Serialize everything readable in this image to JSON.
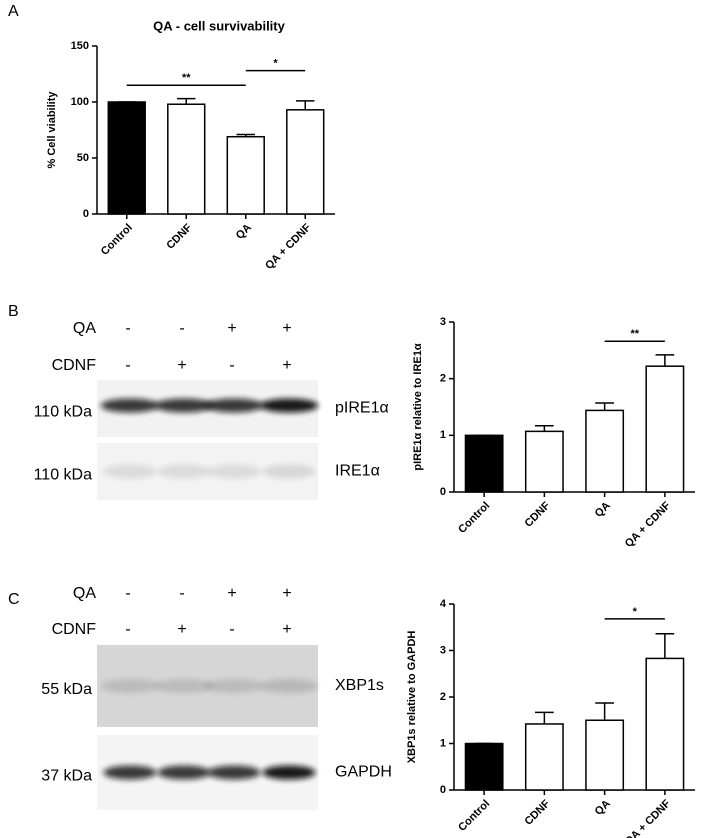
{
  "panel_labels": [
    "A",
    "B",
    "C"
  ],
  "chart_data": [
    {
      "type": "bar",
      "title": "QA - cell survivability",
      "y_label": "% Cell viability",
      "categories": [
        "Control",
        "CDNF",
        "QA",
        "QA + CDNF"
      ],
      "values": [
        100,
        98,
        69,
        93
      ],
      "errors": [
        0,
        5,
        2,
        8
      ],
      "colors": [
        "#000000",
        "#ffffff",
        "#ffffff",
        "#ffffff"
      ],
      "ylim": [
        0,
        150
      ],
      "yticks": [
        0,
        50,
        100,
        150
      ],
      "annotations": [
        {
          "text": "**",
          "between": [
            "Control",
            "QA"
          ]
        },
        {
          "text": "*",
          "between": [
            "QA",
            "QA + CDNF"
          ]
        }
      ]
    },
    {
      "type": "bar",
      "y_label": "pIRE1α relative to IRE1α",
      "categories": [
        "Control",
        "CDNF",
        "QA",
        "QA + CDNF"
      ],
      "values": [
        1,
        1.07,
        1.44,
        2.22
      ],
      "errors": [
        0,
        0.1,
        0.13,
        0.2
      ],
      "colors": [
        "#000000",
        "#ffffff",
        "#ffffff",
        "#ffffff"
      ],
      "ylim": [
        0,
        3
      ],
      "yticks": [
        0,
        1,
        2,
        3
      ],
      "annotations": [
        {
          "text": "**",
          "between": [
            "QA",
            "QA + CDNF"
          ]
        }
      ]
    },
    {
      "type": "bar",
      "y_label": "XBP1s relative to GAPDH",
      "categories": [
        "Control",
        "CDNF",
        "QA",
        "QA + CDNF"
      ],
      "values": [
        1,
        1.42,
        1.5,
        2.83
      ],
      "errors": [
        0,
        0.25,
        0.37,
        0.53
      ],
      "colors": [
        "#000000",
        "#ffffff",
        "#ffffff",
        "#ffffff"
      ],
      "ylim": [
        0,
        4
      ],
      "yticks": [
        0,
        1,
        2,
        3,
        4
      ],
      "annotations": [
        {
          "text": "*",
          "between": [
            "QA",
            "QA + CDNF"
          ]
        }
      ]
    }
  ],
  "blots": [
    {
      "conditions": [
        {
          "name": "QA",
          "signs": [
            "-",
            "-",
            "+",
            "+"
          ]
        },
        {
          "name": "CDNF",
          "signs": [
            "-",
            "+",
            "-",
            "+"
          ]
        }
      ],
      "bands": [
        {
          "size": "110 kDa",
          "target": "pIRE1α"
        },
        {
          "size": "110 kDa",
          "target": "IRE1α"
        }
      ]
    },
    {
      "conditions": [
        {
          "name": "QA",
          "signs": [
            "-",
            "-",
            "+",
            "+"
          ]
        },
        {
          "name": "CDNF",
          "signs": [
            "-",
            "+",
            "-",
            "+"
          ]
        }
      ],
      "bands": [
        {
          "size": "55 kDa",
          "target": "XBP1s"
        },
        {
          "size": "37 kDa",
          "target": "GAPDH"
        }
      ]
    }
  ]
}
